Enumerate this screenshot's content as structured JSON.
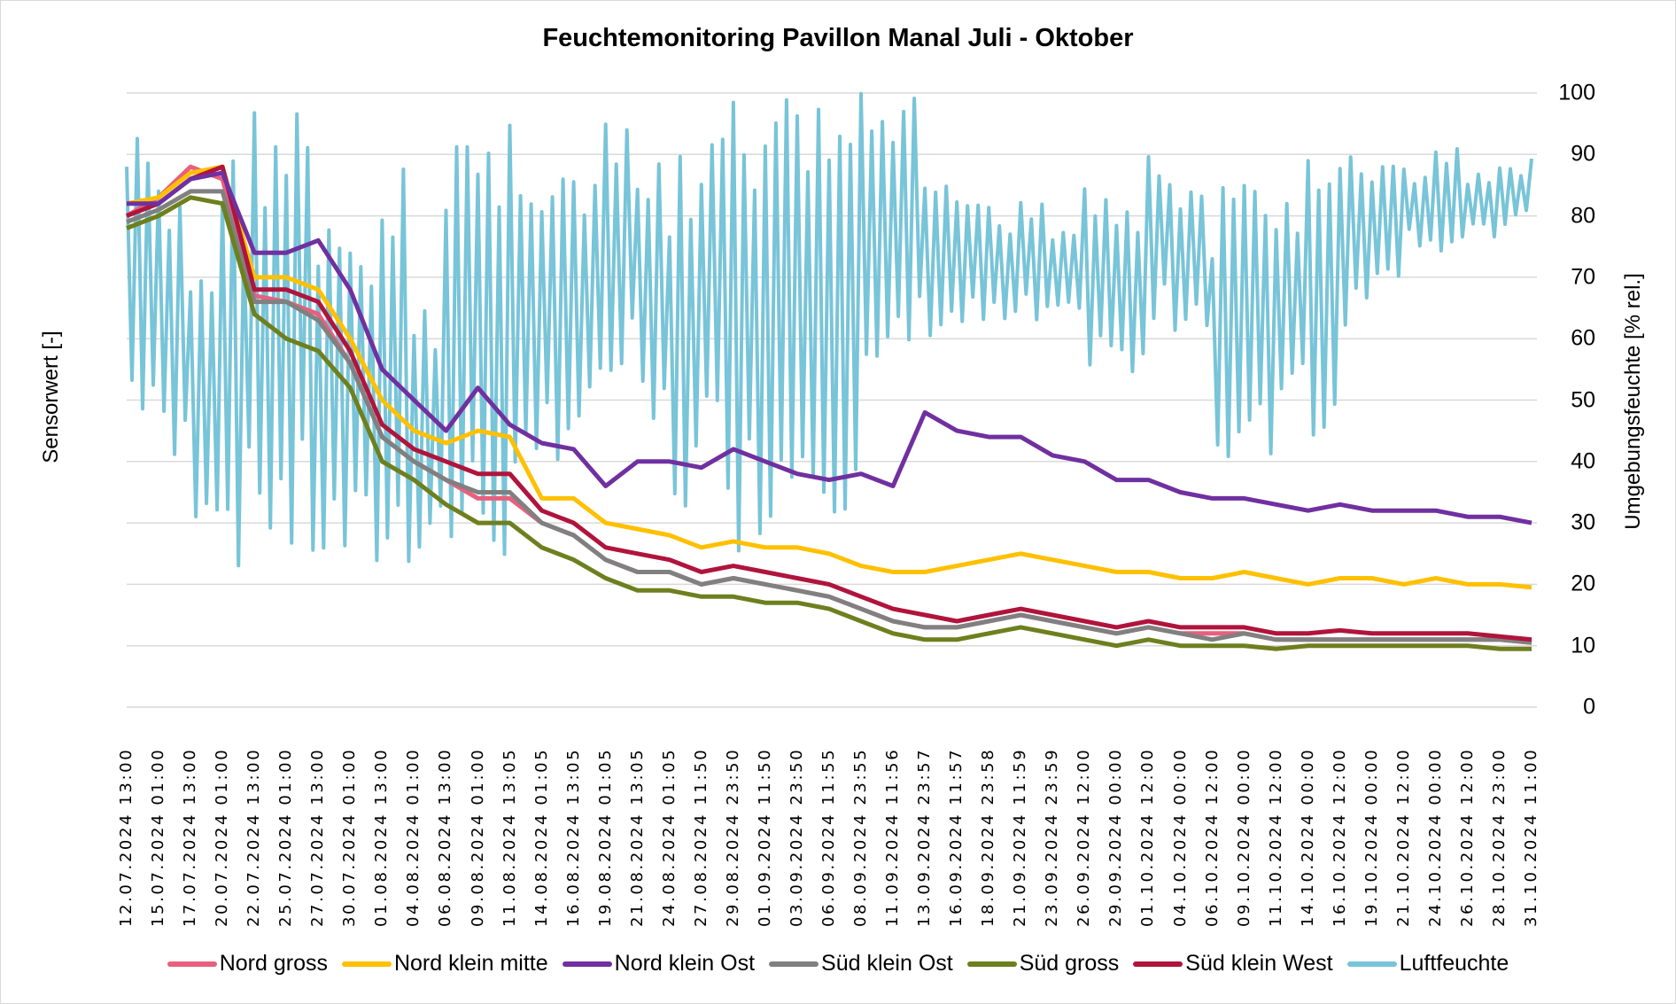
{
  "chart_data": {
    "type": "line",
    "title": "Feuchtemonitoring Pavillon Manal Juli - Oktober",
    "ylabel_left": "Sensorwert [-]",
    "ylabel_right": "Umgebungsfeuchte [% rel.]",
    "ylim": [
      0,
      100
    ],
    "yticks": [
      "0",
      "10",
      "20",
      "30",
      "40",
      "50",
      "60",
      "70",
      "80",
      "90",
      "100"
    ],
    "grid": true,
    "legend_position": "bottom",
    "categories": [
      "12.07.2024 13:00",
      "15.07.2024 01:00",
      "17.07.2024 13:00",
      "20.07.2024 01:00",
      "22.07.2024 13:00",
      "25.07.2024 01:00",
      "27.07.2024 13:00",
      "30.07.2024 01:00",
      "01.08.2024 13:00",
      "04.08.2024 01:00",
      "06.08.2024 13:00",
      "09.08.2024 01:00",
      "11.08.2024 13:05",
      "14.08.2024 01:05",
      "16.08.2024 13:05",
      "19.08.2024 01:05",
      "21.08.2024 13:05",
      "24.08.2024 01:05",
      "27.08.2024 11:50",
      "29.08.2024 23:50",
      "01.09.2024 11:50",
      "03.09.2024 23:50",
      "06.09.2024 11:55",
      "08.09.2024 23:55",
      "11.09.2024 11:56",
      "13.09.2024 23:57",
      "16.09.2024 11:57",
      "18.09.2024 23:58",
      "21.09.2024 11:59",
      "23.09.2024 23:59",
      "26.09.2024 12:00",
      "29.09.2024 00:00",
      "01.10.2024 12:00",
      "04.10.2024 00:00",
      "06.10.2024 12:00",
      "09.10.2024 00:00",
      "11.10.2024 12:00",
      "14.10.2024 00:00",
      "16.10.2024 12:00",
      "19.10.2024 00:00",
      "21.10.2024 12:00",
      "24.10.2024 00:00",
      "26.10.2024 12:00",
      "28.10.2024 23:00",
      "31.10.2024 11:00"
    ],
    "series": [
      {
        "name": "Nord gross",
        "color": "#E8607E",
        "values": [
          80,
          83,
          88,
          86,
          67,
          66,
          64,
          56,
          44,
          40,
          37,
          34,
          34,
          30,
          28,
          24,
          22,
          22,
          20,
          21,
          20,
          19,
          18,
          16,
          14,
          13,
          13,
          14,
          15,
          14,
          13,
          12,
          13,
          12,
          12,
          12,
          11,
          11,
          11,
          11,
          11,
          11,
          11,
          11,
          10.5
        ]
      },
      {
        "name": "Nord klein mitte",
        "color": "#FFC000",
        "values": [
          82,
          83,
          87,
          88,
          70,
          70,
          68,
          60,
          50,
          45,
          43,
          45,
          44,
          34,
          34,
          30,
          29,
          28,
          26,
          27,
          26,
          26,
          25,
          23,
          22,
          22,
          23,
          24,
          25,
          24,
          23,
          22,
          22,
          21,
          21,
          22,
          21,
          20,
          21,
          21,
          20,
          21,
          20,
          20,
          19.5
        ]
      },
      {
        "name": "Nord klein Ost",
        "color": "#7030A0",
        "values": [
          82,
          82,
          86,
          87,
          74,
          74,
          76,
          68,
          55,
          50,
          45,
          52,
          46,
          43,
          42,
          36,
          40,
          40,
          39,
          42,
          40,
          38,
          37,
          38,
          36,
          48,
          45,
          44,
          44,
          41,
          40,
          37,
          37,
          35,
          34,
          34,
          33,
          32,
          33,
          32,
          32,
          32,
          31,
          31,
          30
        ]
      },
      {
        "name": "Süd klein Ost",
        "color": "#808080",
        "values": [
          79,
          81,
          84,
          84,
          66,
          66,
          63,
          56,
          44,
          40,
          37,
          35,
          35,
          30,
          28,
          24,
          22,
          22,
          20,
          21,
          20,
          19,
          18,
          16,
          14,
          13,
          13,
          14,
          15,
          14,
          13,
          12,
          13,
          12,
          11,
          12,
          11,
          11,
          11,
          11,
          11,
          11,
          11,
          11,
          10.5
        ]
      },
      {
        "name": "Süd gross",
        "color": "#6E7F1E",
        "values": [
          78,
          80,
          83,
          82,
          64,
          60,
          58,
          52,
          40,
          37,
          33,
          30,
          30,
          26,
          24,
          21,
          19,
          19,
          18,
          18,
          17,
          17,
          16,
          14,
          12,
          11,
          11,
          12,
          13,
          12,
          11,
          10,
          11,
          10,
          10,
          10,
          9.5,
          10,
          10,
          10,
          10,
          10,
          10,
          9.5,
          9.5
        ]
      },
      {
        "name": "Süd klein West",
        "color": "#B0143C",
        "values": [
          80,
          82,
          86,
          88,
          68,
          68,
          66,
          58,
          46,
          42,
          40,
          38,
          38,
          32,
          30,
          26,
          25,
          24,
          22,
          23,
          22,
          21,
          20,
          18,
          16,
          15,
          14,
          15,
          16,
          15,
          14,
          13,
          14,
          13,
          13,
          13,
          12,
          12,
          12.5,
          12,
          12,
          12,
          12,
          11.5,
          11
        ]
      },
      {
        "name": "Luftfeuchte",
        "color": "#78C4D8",
        "axis": "right",
        "range_low_high": [
          [
            45,
            94
          ],
          [
            35,
            85
          ],
          [
            30,
            75
          ],
          [
            22,
            92
          ],
          [
            25,
            99
          ],
          [
            20,
            100
          ],
          [
            20,
            80
          ],
          [
            20,
            75
          ],
          [
            19,
            90
          ],
          [
            25,
            65
          ],
          [
            20,
            100
          ],
          [
            22,
            95
          ],
          [
            22,
            100
          ],
          [
            40,
            90
          ],
          [
            42,
            88
          ],
          [
            50,
            95
          ],
          [
            40,
            90
          ],
          [
            30,
            90
          ],
          [
            35,
            95
          ],
          [
            25,
            100
          ],
          [
            30,
            100
          ],
          [
            35,
            100
          ],
          [
            30,
            100
          ],
          [
            45,
            100
          ],
          [
            55,
            100
          ],
          [
            60,
            85
          ],
          [
            60,
            85
          ],
          [
            60,
            82
          ],
          [
            60,
            85
          ],
          [
            60,
            80
          ],
          [
            55,
            88
          ],
          [
            50,
            85
          ],
          [
            60,
            90
          ],
          [
            62,
            85
          ],
          [
            35,
            85
          ],
          [
            35,
            88
          ],
          [
            50,
            85
          ],
          [
            42,
            90
          ],
          [
            62,
            90
          ],
          [
            70,
            90
          ],
          [
            75,
            88
          ],
          [
            73,
            92
          ],
          [
            75,
            88
          ],
          [
            78,
            88
          ],
          [
            80,
            90
          ]
        ]
      }
    ]
  }
}
